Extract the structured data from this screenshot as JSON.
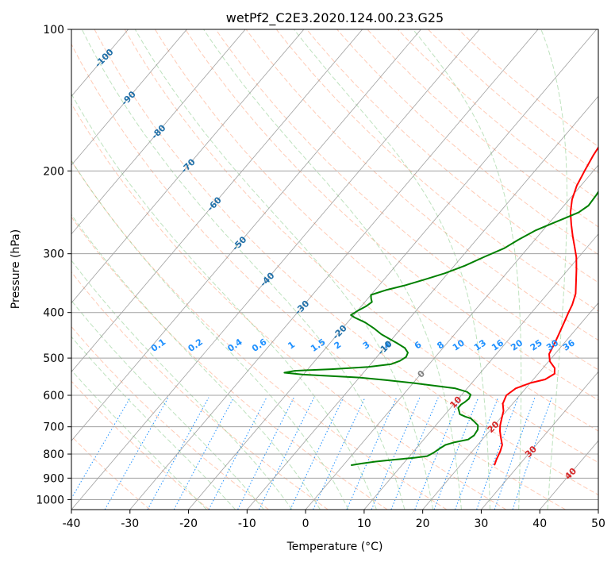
{
  "chart_data": {
    "type": "line",
    "title": "wetPf2_C2E3.2020.124.00.23.G25",
    "xlabel": "Temperature (°C)",
    "ylabel": "Pressure (hPa)",
    "xlim": [
      -40,
      50
    ],
    "ylim": [
      1050,
      100
    ],
    "y_scale": "log",
    "x_ticks": [
      -40,
      -30,
      -20,
      -10,
      0,
      10,
      20,
      30,
      40,
      50
    ],
    "y_ticks": [
      100,
      200,
      300,
      400,
      500,
      600,
      700,
      800,
      900,
      1000
    ],
    "grid": true,
    "series": [
      {
        "role": "temperature",
        "color": "#ff0000",
        "points": [
          [
            25.8,
            845
          ],
          [
            25.3,
            820
          ],
          [
            24.8,
            790
          ],
          [
            24.2,
            765
          ],
          [
            23.0,
            740
          ],
          [
            21.8,
            715
          ],
          [
            21.0,
            695
          ],
          [
            20.2,
            670
          ],
          [
            19.5,
            648
          ],
          [
            18.3,
            625
          ],
          [
            17.7,
            600
          ],
          [
            18.3,
            580
          ],
          [
            20.0,
            565
          ],
          [
            22.0,
            555
          ],
          [
            22.8,
            540
          ],
          [
            22.0,
            525
          ],
          [
            20.2,
            508
          ],
          [
            19.0,
            490
          ],
          [
            18.4,
            465
          ],
          [
            17.8,
            445
          ],
          [
            17.0,
            420
          ],
          [
            16.3,
            400
          ],
          [
            15.8,
            385
          ],
          [
            14.8,
            365
          ],
          [
            13.2,
            345
          ],
          [
            11.5,
            325
          ],
          [
            9.6,
            305
          ],
          [
            7.8,
            290
          ],
          [
            5.9,
            275
          ],
          [
            4.0,
            260
          ],
          [
            2.1,
            245
          ],
          [
            0.5,
            230
          ],
          [
            -0.7,
            215
          ],
          [
            -1.5,
            200
          ],
          [
            -2.3,
            185
          ],
          [
            -2.9,
            170
          ],
          [
            -3.5,
            155
          ],
          [
            -3.8,
            145
          ],
          [
            -3.7,
            135
          ],
          [
            -3.1,
            127
          ],
          [
            -2.3,
            121
          ],
          [
            -1.4,
            117
          ],
          [
            -0.6,
            113
          ],
          [
            0.2,
            109
          ],
          [
            1.3,
            105
          ],
          [
            2.3,
            102
          ],
          [
            3.0,
            100
          ]
        ]
      },
      {
        "role": "dewpoint",
        "color": "#008000",
        "points": [
          [
            1.3,
            845
          ],
          [
            2.8,
            838
          ],
          [
            5.0,
            830
          ],
          [
            8.0,
            822
          ],
          [
            11.0,
            815
          ],
          [
            13.0,
            808
          ],
          [
            13.6,
            795
          ],
          [
            14.0,
            780
          ],
          [
            14.5,
            765
          ],
          [
            15.7,
            755
          ],
          [
            17.6,
            745
          ],
          [
            18.0,
            730
          ],
          [
            17.8,
            710
          ],
          [
            17.2,
            695
          ],
          [
            15.8,
            680
          ],
          [
            15.0,
            672
          ],
          [
            13.8,
            666
          ],
          [
            12.5,
            658
          ],
          [
            11.9,
            648
          ],
          [
            11.3,
            638
          ],
          [
            11.3,
            628
          ],
          [
            11.6,
            620
          ],
          [
            11.8,
            610
          ],
          [
            11.5,
            598
          ],
          [
            10.5,
            590
          ],
          [
            8.0,
            580
          ],
          [
            0.0,
            565
          ],
          [
            -5.0,
            557
          ],
          [
            -10.0,
            550
          ],
          [
            -20.0,
            542
          ],
          [
            -23.5,
            537
          ],
          [
            -22.0,
            532
          ],
          [
            -16.0,
            528
          ],
          [
            -10.0,
            522
          ],
          [
            -6.5,
            515
          ],
          [
            -5.5,
            507
          ],
          [
            -5.0,
            497
          ],
          [
            -5.3,
            487
          ],
          [
            -6.5,
            476
          ],
          [
            -8.5,
            465
          ],
          [
            -10.5,
            455
          ],
          [
            -12.5,
            445
          ],
          [
            -14.5,
            433
          ],
          [
            -17.0,
            420
          ],
          [
            -19.5,
            410
          ],
          [
            -20.5,
            405
          ],
          [
            -20.0,
            397
          ],
          [
            -19.2,
            388
          ],
          [
            -18.8,
            380
          ],
          [
            -19.5,
            373
          ],
          [
            -20.0,
            367
          ],
          [
            -18.0,
            358
          ],
          [
            -15.5,
            350
          ],
          [
            -13.0,
            340
          ],
          [
            -10.5,
            330
          ],
          [
            -8.2,
            318
          ],
          [
            -6.2,
            305
          ],
          [
            -4.0,
            292
          ],
          [
            -2.8,
            280
          ],
          [
            -1.3,
            268
          ],
          [
            0.3,
            260
          ],
          [
            2.0,
            252
          ],
          [
            3.5,
            245
          ],
          [
            4.2,
            237
          ],
          [
            4.0,
            225
          ],
          [
            3.5,
            210
          ],
          [
            2.4,
            198
          ],
          [
            1.0,
            185
          ],
          [
            -1.0,
            170
          ],
          [
            -2.7,
            160
          ],
          [
            -3.5,
            152
          ],
          [
            -3.0,
            143
          ],
          [
            -2.5,
            135
          ],
          [
            -2.2,
            127
          ],
          [
            -1.8,
            120
          ],
          [
            -1.0,
            115
          ],
          [
            0.5,
            110
          ],
          [
            1.8,
            106
          ],
          [
            2.8,
            103
          ],
          [
            3.6,
            100
          ]
        ]
      }
    ],
    "mixing_ratio_labels": [
      "0.1",
      "0.2",
      "0.4",
      "0.6",
      "1",
      "1.5",
      "2",
      "3",
      "4",
      "6",
      "8",
      "10",
      "13",
      "16",
      "20",
      "25",
      "30",
      "36"
    ],
    "mixing_ratio_values": [
      0.1,
      0.2,
      0.4,
      0.6,
      1,
      1.5,
      2,
      3,
      4,
      6,
      8,
      10,
      13,
      16,
      20,
      25,
      30,
      36
    ],
    "mixing_ratio_label_pressure": 475,
    "mixing_ratio_color": "#1e90ff",
    "isotherm_labels": [
      "-100",
      "-90",
      "-80",
      "-70",
      "-60",
      "-50",
      "-40",
      "-30",
      "-20",
      "-10",
      "0",
      "10",
      "20",
      "30",
      "40"
    ],
    "isotherm_values": [
      -100,
      -90,
      -80,
      -70,
      -60,
      -50,
      -40,
      -30,
      -20,
      -10,
      0,
      10,
      20,
      30,
      40
    ],
    "isotherm_label_pressures": [
      115,
      140,
      165,
      195,
      235,
      285,
      340,
      390,
      440,
      475,
      540,
      620,
      700,
      790,
      880
    ],
    "isotherm_label_colors": [
      "#1f6fa8",
      "#1f6fa8",
      "#1f6fa8",
      "#1f6fa8",
      "#1f6fa8",
      "#1f6fa8",
      "#1f6fa8",
      "#1f6fa8",
      "#1f6fa8",
      "#1f6fa8",
      "#808080",
      "#d62728",
      "#d62728",
      "#d62728",
      "#d62728"
    ],
    "dry_adiabat_color": "#ffa07a",
    "moist_adiabat_color": "#6fbf6f",
    "skew_isotherm_color": "#808080",
    "isobar_color": "#a0a0a0"
  }
}
